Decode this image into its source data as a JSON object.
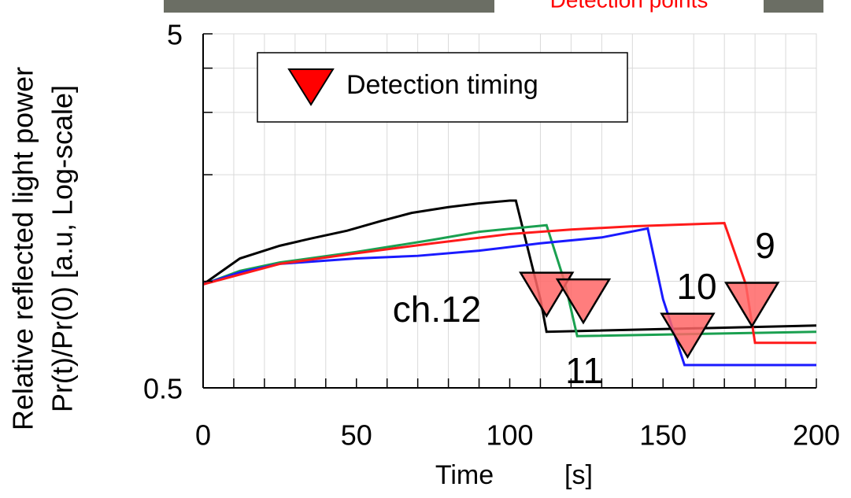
{
  "chart_data": {
    "type": "line",
    "header_text": "Detection points",
    "xlabel": "Time",
    "xunit": "[s]",
    "ylabel": [
      "Relative reflected light power",
      "Pr(t)/Pr(0) [a.u, Log-scale]"
    ],
    "xlim": [
      0,
      200
    ],
    "xticks": [
      0,
      50,
      100,
      150,
      200
    ],
    "minor_xticks": [
      10,
      20,
      30,
      40,
      60,
      70,
      80,
      90,
      110,
      120,
      130,
      140,
      160,
      170,
      180,
      190
    ],
    "ylim": [
      0.5,
      5
    ],
    "yticks": [
      0.5,
      5
    ],
    "minor_yticks": [
      1,
      2,
      3,
      4
    ],
    "log_y": true,
    "grid": true,
    "legend": "upper left",
    "series": [
      {
        "label": "ch.12",
        "color": "#000000",
        "x": [
          0,
          12,
          25,
          35,
          47,
          58,
          68,
          80,
          90,
          100,
          102,
          110,
          112,
          200
        ],
        "values": [
          0.98,
          1.16,
          1.26,
          1.32,
          1.39,
          1.48,
          1.56,
          1.62,
          1.66,
          1.69,
          1.69,
          0.89,
          0.72,
          0.75
        ]
      },
      {
        "label": "11",
        "color": "#1aa050",
        "x": [
          0,
          12,
          25,
          50,
          75,
          90,
          112,
          118,
          122,
          200
        ],
        "values": [
          0.98,
          1.07,
          1.13,
          1.21,
          1.31,
          1.38,
          1.44,
          0.99,
          0.7,
          0.72
        ]
      },
      {
        "label": "10",
        "color": "#1a1aff",
        "x": [
          0,
          12,
          25,
          50,
          70,
          90,
          110,
          130,
          145,
          150,
          157,
          200
        ],
        "values": [
          0.98,
          1.06,
          1.12,
          1.16,
          1.18,
          1.22,
          1.28,
          1.33,
          1.41,
          0.89,
          0.58,
          0.58
        ]
      },
      {
        "label": "9",
        "color": "#ff1a1a",
        "x": [
          0,
          25,
          50,
          75,
          100,
          120,
          140,
          170,
          177,
          180,
          200
        ],
        "values": [
          0.98,
          1.12,
          1.2,
          1.28,
          1.36,
          1.4,
          1.43,
          1.46,
          0.98,
          0.67,
          0.67
        ]
      }
    ],
    "markers": {
      "name": "Detection timing",
      "color": "#ff6666",
      "legend_color": "#ff0000",
      "x": [
        112,
        124,
        158,
        179
      ],
      "values": [
        0.94,
        0.9,
        0.72,
        0.88
      ]
    }
  }
}
